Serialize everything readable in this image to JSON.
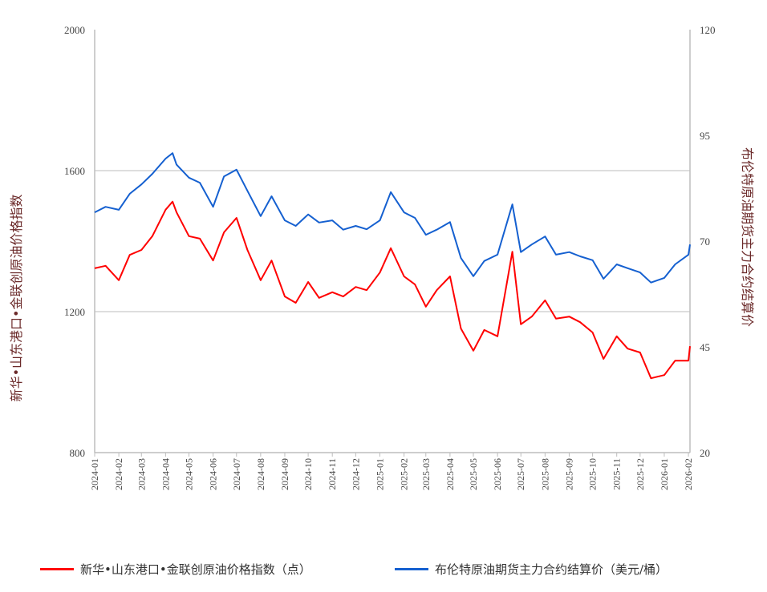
{
  "chart_data": {
    "type": "line",
    "dual_axis": true,
    "xlabel": "",
    "y_left": {
      "label": "新华•山东港口•金联创原油价格指数",
      "lim": [
        800,
        2000
      ],
      "ticks": [
        800,
        1200,
        1600,
        2000
      ]
    },
    "y_right": {
      "label": "布伦特原油期货主力合约结算价",
      "lim": [
        20,
        120
      ],
      "ticks": [
        20,
        45,
        70,
        95,
        120
      ]
    },
    "x_range": [
      "2024-01-01",
      "2026-02-03"
    ],
    "x_ticks": [
      "2024-01",
      "2024-02",
      "2024-03",
      "2024-04",
      "2024-05",
      "2024-06",
      "2024-07",
      "2024-08",
      "2024-09",
      "2024-10",
      "2024-11",
      "2024-12",
      "2025-01",
      "2025-02",
      "2025-03",
      "2025-04",
      "2025-05",
      "2025-06",
      "2025-07",
      "2025-08",
      "2025-09",
      "2025-10",
      "2025-11",
      "2025-12",
      "2026-01",
      "2026-02"
    ],
    "grid": "horizontal",
    "legend_position": "bottom",
    "x": [
      "2024-01-01",
      "2024-01-15",
      "2024-02-01",
      "2024-02-15",
      "2024-03-01",
      "2024-03-15",
      "2024-04-01",
      "2024-04-10",
      "2024-04-15",
      "2024-05-01",
      "2024-05-15",
      "2024-06-01",
      "2024-06-15",
      "2024-07-01",
      "2024-07-15",
      "2024-08-01",
      "2024-08-15",
      "2024-09-01",
      "2024-09-15",
      "2024-10-01",
      "2024-10-15",
      "2024-11-01",
      "2024-11-15",
      "2024-12-01",
      "2024-12-15",
      "2025-01-01",
      "2025-01-15",
      "2025-02-01",
      "2025-02-15",
      "2025-03-01",
      "2025-03-15",
      "2025-04-01",
      "2025-04-15",
      "2025-05-01",
      "2025-05-15",
      "2025-06-01",
      "2025-06-20",
      "2025-07-01",
      "2025-07-15",
      "2025-08-01",
      "2025-08-15",
      "2025-09-01",
      "2025-09-15",
      "2025-10-01",
      "2025-10-15",
      "2025-11-01",
      "2025-11-15",
      "2025-12-01",
      "2025-12-15",
      "2026-01-01",
      "2026-01-15",
      "2026-02-01",
      "2026-02-03"
    ],
    "series": [
      {
        "name": "新华•山东港口•金联创原油价格指数（点）",
        "axis": "left",
        "color": "#ff0000",
        "values": [
          1323,
          1330,
          1289,
          1361,
          1375,
          1414,
          1489,
          1512,
          1482,
          1414,
          1407,
          1345,
          1425,
          1466,
          1375,
          1289,
          1345,
          1243,
          1225,
          1284,
          1239,
          1255,
          1243,
          1270,
          1261,
          1311,
          1380,
          1300,
          1277,
          1214,
          1261,
          1300,
          1152,
          1089,
          1148,
          1130,
          1370,
          1164,
          1186,
          1232,
          1180,
          1186,
          1170,
          1141,
          1066,
          1130,
          1095,
          1084,
          1011,
          1020,
          1061,
          1061,
          1102
        ]
      },
      {
        "name": "布伦特原油期货主力合约结算价（美元/桶）",
        "axis": "right",
        "color": "#1560d0",
        "values": [
          76.8,
          78.1,
          77.4,
          81.2,
          83.4,
          85.9,
          89.5,
          90.8,
          88.1,
          85.0,
          83.8,
          78.1,
          85.3,
          86.9,
          81.9,
          75.9,
          80.6,
          74.9,
          73.6,
          76.3,
          74.4,
          74.9,
          72.7,
          73.6,
          72.8,
          74.9,
          81.6,
          76.8,
          75.5,
          71.5,
          72.7,
          74.5,
          66.0,
          61.7,
          65.3,
          66.8,
          78.7,
          67.4,
          69.2,
          71.1,
          66.8,
          67.4,
          66.4,
          65.5,
          61.1,
          64.5,
          63.6,
          62.6,
          60.2,
          61.3,
          64.5,
          66.8,
          69.2
        ]
      }
    ]
  }
}
